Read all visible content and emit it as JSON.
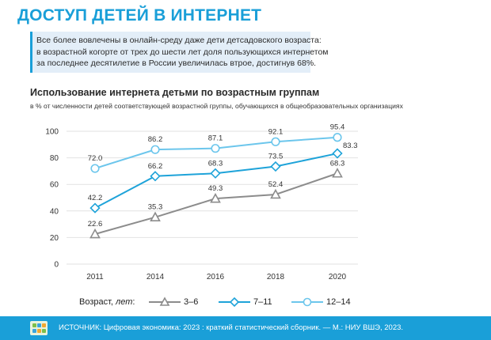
{
  "header": {
    "title": "ДОСТУП ДЕТЕЙ В ИНТЕРНЕТ",
    "intro_lines": [
      "Все более вовлечены в онлайн-среду даже дети детсадовского возраста:",
      "в возрастной когорте от трех до шести лет доля пользующихся интернетом",
      "за последнее десятилетие  в России увеличилась втрое, достигнув 68%."
    ]
  },
  "legend": {
    "title_prefix": "Возраст, ",
    "title_italic": "лет",
    "title_suffix": ":"
  },
  "footer": {
    "source": "ИСТОЧНИК: Цифровая экономика: 2023 : краткий статистический сборник. — М.: НИУ ВШЭ, 2023."
  },
  "colors": {
    "brand": "#1a9fd8",
    "intro_bg": "#e3eef8",
    "series_3_6": "#8c8c8c",
    "series_7_11": "#1ea3d9",
    "series_12_14": "#6cc6ec"
  },
  "chart_data": {
    "type": "line",
    "title": "Использование интернета детьми по возрастным группам",
    "subtitle": "в % от численности детей соответствующей возрастной группы, обучающихся в общеобразовательных организациях",
    "categories": [
      "2011",
      "2014",
      "2016",
      "2018",
      "2020"
    ],
    "ylim": [
      0,
      100
    ],
    "yticks": [
      0,
      20,
      40,
      60,
      80,
      100
    ],
    "grid": true,
    "legend_position": "bottom",
    "series": [
      {
        "name": "3–6",
        "marker": "triangle",
        "values": [
          22.6,
          35.3,
          49.3,
          52.4,
          68.3
        ]
      },
      {
        "name": "7–11",
        "marker": "diamond",
        "values": [
          42.2,
          66.2,
          68.3,
          73.5,
          83.3
        ]
      },
      {
        "name": "12–14",
        "marker": "circle",
        "values": [
          72.0,
          86.2,
          87.1,
          92.1,
          95.4
        ]
      }
    ]
  }
}
